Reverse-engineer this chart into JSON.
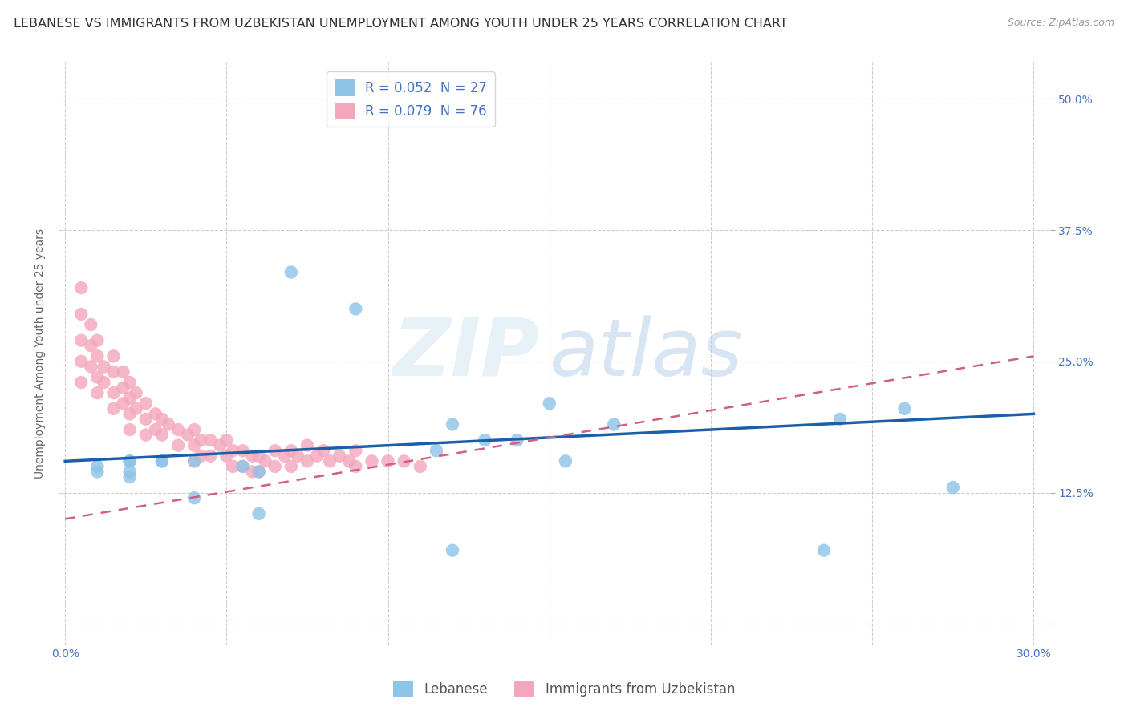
{
  "title": "LEBANESE VS IMMIGRANTS FROM UZBEKISTAN UNEMPLOYMENT AMONG YOUTH UNDER 25 YEARS CORRELATION CHART",
  "source": "Source: ZipAtlas.com",
  "ylabel": "Unemployment Among Youth under 25 years",
  "x_ticks": [
    0.0,
    0.05,
    0.1,
    0.15,
    0.2,
    0.25,
    0.3
  ],
  "y_ticks": [
    0.0,
    0.125,
    0.25,
    0.375,
    0.5
  ],
  "y_tick_labels_right": [
    "",
    "12.5%",
    "25.0%",
    "37.5%",
    "50.0%"
  ],
  "xlim": [
    -0.002,
    0.305
  ],
  "ylim": [
    -0.02,
    0.535
  ],
  "legend_label1": "Lebanese",
  "legend_label2": "Immigrants from Uzbekistan",
  "R1": 0.052,
  "N1": 27,
  "R2": 0.079,
  "N2": 76,
  "color_blue": "#8ec4e8",
  "color_pink": "#f4a7bc",
  "trend_blue": "#1a5fa8",
  "trend_pink": "#d06080",
  "background": "#ffffff",
  "grid_color": "#cccccc",
  "title_fontsize": 11.5,
  "axis_label_fontsize": 10,
  "tick_fontsize": 10,
  "legend_fontsize": 12,
  "blue_x": [
    0.26,
    0.24,
    0.07,
    0.09,
    0.12,
    0.14,
    0.115,
    0.13,
    0.15,
    0.155,
    0.055,
    0.06,
    0.06,
    0.04,
    0.04,
    0.03,
    0.03,
    0.02,
    0.02,
    0.02,
    0.02,
    0.01,
    0.01,
    0.17,
    0.12,
    0.235,
    0.275
  ],
  "blue_y": [
    0.205,
    0.195,
    0.335,
    0.3,
    0.19,
    0.175,
    0.165,
    0.175,
    0.21,
    0.155,
    0.15,
    0.145,
    0.105,
    0.155,
    0.12,
    0.155,
    0.155,
    0.155,
    0.155,
    0.145,
    0.14,
    0.15,
    0.145,
    0.19,
    0.07,
    0.07,
    0.13
  ],
  "pink_x": [
    0.005,
    0.005,
    0.005,
    0.005,
    0.005,
    0.008,
    0.008,
    0.008,
    0.01,
    0.01,
    0.01,
    0.01,
    0.012,
    0.012,
    0.015,
    0.015,
    0.015,
    0.015,
    0.018,
    0.018,
    0.018,
    0.02,
    0.02,
    0.02,
    0.02,
    0.022,
    0.022,
    0.025,
    0.025,
    0.025,
    0.028,
    0.028,
    0.03,
    0.03,
    0.032,
    0.035,
    0.035,
    0.038,
    0.04,
    0.04,
    0.04,
    0.042,
    0.042,
    0.045,
    0.045,
    0.048,
    0.05,
    0.05,
    0.052,
    0.052,
    0.055,
    0.055,
    0.058,
    0.058,
    0.06,
    0.06,
    0.062,
    0.065,
    0.065,
    0.068,
    0.07,
    0.07,
    0.072,
    0.075,
    0.075,
    0.078,
    0.08,
    0.082,
    0.085,
    0.088,
    0.09,
    0.09,
    0.095,
    0.1,
    0.105,
    0.11
  ],
  "pink_y": [
    0.32,
    0.295,
    0.27,
    0.25,
    0.23,
    0.285,
    0.265,
    0.245,
    0.27,
    0.255,
    0.235,
    0.22,
    0.245,
    0.23,
    0.255,
    0.24,
    0.22,
    0.205,
    0.24,
    0.225,
    0.21,
    0.23,
    0.215,
    0.2,
    0.185,
    0.22,
    0.205,
    0.21,
    0.195,
    0.18,
    0.2,
    0.185,
    0.195,
    0.18,
    0.19,
    0.185,
    0.17,
    0.18,
    0.185,
    0.17,
    0.155,
    0.175,
    0.16,
    0.175,
    0.16,
    0.17,
    0.175,
    0.16,
    0.165,
    0.15,
    0.165,
    0.15,
    0.16,
    0.145,
    0.16,
    0.145,
    0.155,
    0.165,
    0.15,
    0.16,
    0.165,
    0.15,
    0.16,
    0.17,
    0.155,
    0.16,
    0.165,
    0.155,
    0.16,
    0.155,
    0.165,
    0.15,
    0.155,
    0.155,
    0.155,
    0.15
  ]
}
